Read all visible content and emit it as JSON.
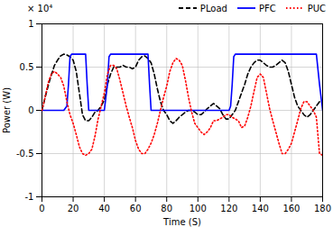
{
  "chart_data": {
    "type": "line",
    "xlabel": "Time (S)",
    "ylabel": "Power (W)",
    "annotations": [
      "× 10⁴"
    ],
    "xlim": [
      0,
      180
    ],
    "ylim": [
      -1.0,
      1.0
    ],
    "xticks": [
      0,
      20,
      40,
      60,
      80,
      100,
      120,
      140,
      160,
      180
    ],
    "yticks": [
      -1,
      -0.5,
      0,
      0.5,
      1
    ],
    "grid": true,
    "legend": "top",
    "series": [
      {
        "name": "PLoad",
        "color": "black",
        "line_style": "dashed",
        "x": [
          0,
          2,
          5,
          8,
          10,
          12,
          14,
          16,
          18,
          20,
          22,
          24,
          26,
          28,
          30,
          32,
          34,
          36,
          38,
          40,
          42,
          44,
          46,
          48,
          50,
          52,
          54,
          56,
          58,
          60,
          62,
          64,
          66,
          68,
          70,
          72,
          74,
          76,
          78,
          80,
          82,
          84,
          86,
          88,
          90,
          92,
          94,
          96,
          98,
          100,
          102,
          104,
          106,
          108,
          110,
          112,
          114,
          116,
          118,
          120,
          122,
          124,
          126,
          128,
          130,
          132,
          134,
          136,
          138,
          140,
          142,
          144,
          146,
          148,
          150,
          152,
          154,
          156,
          158,
          160,
          162,
          164,
          166,
          168,
          170,
          172,
          174,
          176,
          178,
          180
        ],
        "values": [
          0.0,
          0.15,
          0.35,
          0.52,
          0.58,
          0.63,
          0.65,
          0.64,
          0.62,
          0.58,
          0.45,
          0.2,
          -0.05,
          -0.12,
          -0.12,
          -0.08,
          -0.02,
          0.0,
          0.05,
          0.12,
          0.3,
          0.42,
          0.5,
          0.5,
          0.5,
          0.52,
          0.5,
          0.5,
          0.48,
          0.5,
          0.58,
          0.62,
          0.63,
          0.6,
          0.55,
          0.42,
          0.25,
          0.1,
          0.0,
          -0.05,
          -0.12,
          -0.15,
          -0.12,
          -0.08,
          -0.05,
          -0.02,
          0.0,
          0.0,
          -0.02,
          -0.05,
          -0.05,
          -0.02,
          0.02,
          0.05,
          0.08,
          0.05,
          0.02,
          -0.05,
          -0.1,
          -0.1,
          -0.05,
          0.0,
          0.1,
          0.2,
          0.3,
          0.42,
          0.5,
          0.55,
          0.58,
          0.58,
          0.55,
          0.52,
          0.5,
          0.5,
          0.52,
          0.55,
          0.58,
          0.55,
          0.45,
          0.3,
          0.15,
          0.05,
          0.0,
          -0.05,
          -0.08,
          -0.05,
          0.0,
          0.05,
          0.1,
          0.1
        ]
      },
      {
        "name": "PFC",
        "color": "blue",
        "line_style": "solid",
        "x": [
          0,
          1,
          3,
          5,
          8,
          10,
          12,
          14,
          16,
          17,
          18,
          19,
          20,
          21,
          22,
          24,
          26,
          28,
          29,
          30,
          31,
          32,
          34,
          40,
          42,
          43,
          44,
          46,
          48,
          52,
          56,
          60,
          62,
          64,
          66,
          68,
          69,
          70,
          71,
          72,
          80,
          82,
          84,
          86,
          88,
          90,
          92,
          94,
          96,
          98,
          100,
          102,
          104,
          106,
          108,
          110,
          112,
          114,
          116,
          118,
          120,
          121,
          122,
          123,
          124,
          126,
          128,
          130,
          132,
          134,
          136,
          138,
          140,
          141,
          142,
          143,
          144,
          146,
          148,
          160,
          162,
          164,
          166,
          168,
          170,
          172,
          174,
          176,
          178,
          180
        ],
        "values": [
          0.0,
          0.0,
          0.0,
          0.0,
          0.0,
          0.0,
          0.0,
          0.0,
          0.05,
          0.3,
          0.62,
          0.65,
          0.65,
          0.65,
          0.65,
          0.65,
          0.65,
          0.65,
          0.3,
          0.0,
          0.0,
          0.0,
          0.0,
          0.0,
          0.3,
          0.62,
          0.65,
          0.65,
          0.65,
          0.65,
          0.65,
          0.65,
          0.65,
          0.65,
          0.65,
          0.65,
          0.3,
          0.0,
          0.0,
          0.0,
          0.0,
          0.0,
          0.0,
          0.0,
          0.0,
          0.0,
          0.0,
          0.0,
          0.0,
          0.0,
          0.0,
          0.0,
          0.0,
          0.0,
          0.0,
          0.0,
          0.0,
          0.0,
          0.0,
          0.0,
          0.0,
          0.05,
          0.3,
          0.62,
          0.65,
          0.65,
          0.65,
          0.65,
          0.65,
          0.65,
          0.65,
          0.65,
          0.65,
          0.65,
          0.65,
          0.65,
          0.65,
          0.65,
          0.65,
          0.65,
          0.65,
          0.65,
          0.65,
          0.65,
          0.65,
          0.65,
          0.65,
          0.65,
          0.3,
          0.0
        ]
      },
      {
        "name": "PUC",
        "color": "red",
        "line_style": "dotted",
        "x": [
          0,
          2,
          4,
          6,
          8,
          10,
          12,
          14,
          16,
          18,
          20,
          22,
          24,
          26,
          28,
          30,
          32,
          34,
          36,
          38,
          40,
          42,
          44,
          46,
          48,
          50,
          52,
          54,
          56,
          58,
          60,
          62,
          64,
          66,
          68,
          70,
          72,
          74,
          76,
          78,
          80,
          82,
          84,
          86,
          88,
          90,
          92,
          94,
          96,
          98,
          100,
          102,
          104,
          106,
          108,
          110,
          112,
          114,
          116,
          118,
          120,
          122,
          124,
          126,
          128,
          130,
          132,
          134,
          136,
          138,
          140,
          142,
          144,
          146,
          148,
          150,
          152,
          154,
          156,
          158,
          160,
          162,
          164,
          166,
          168,
          170,
          172,
          174,
          176,
          178,
          180
        ],
        "values": [
          0.0,
          0.15,
          0.32,
          0.42,
          0.45,
          0.42,
          0.38,
          0.28,
          0.1,
          -0.05,
          -0.15,
          -0.28,
          -0.42,
          -0.5,
          -0.52,
          -0.5,
          -0.45,
          -0.3,
          -0.1,
          0.05,
          0.2,
          0.42,
          0.52,
          0.52,
          0.48,
          0.35,
          0.2,
          0.05,
          -0.08,
          -0.2,
          -0.35,
          -0.45,
          -0.5,
          -0.5,
          -0.45,
          -0.38,
          -0.28,
          -0.15,
          0.0,
          0.15,
          0.28,
          0.45,
          0.55,
          0.6,
          0.58,
          0.52,
          0.35,
          0.15,
          -0.02,
          -0.15,
          -0.2,
          -0.25,
          -0.28,
          -0.25,
          -0.2,
          -0.12,
          -0.12,
          -0.1,
          -0.08,
          -0.05,
          -0.05,
          -0.08,
          -0.1,
          -0.12,
          -0.2,
          -0.18,
          -0.08,
          0.05,
          0.22,
          0.38,
          0.42,
          0.38,
          0.2,
          0.02,
          -0.12,
          -0.25,
          -0.38,
          -0.5,
          -0.5,
          -0.45,
          -0.38,
          -0.25,
          -0.12,
          0.02,
          0.1,
          0.1,
          0.05,
          0.0,
          -0.08,
          -0.5,
          -0.52
        ]
      }
    ]
  }
}
